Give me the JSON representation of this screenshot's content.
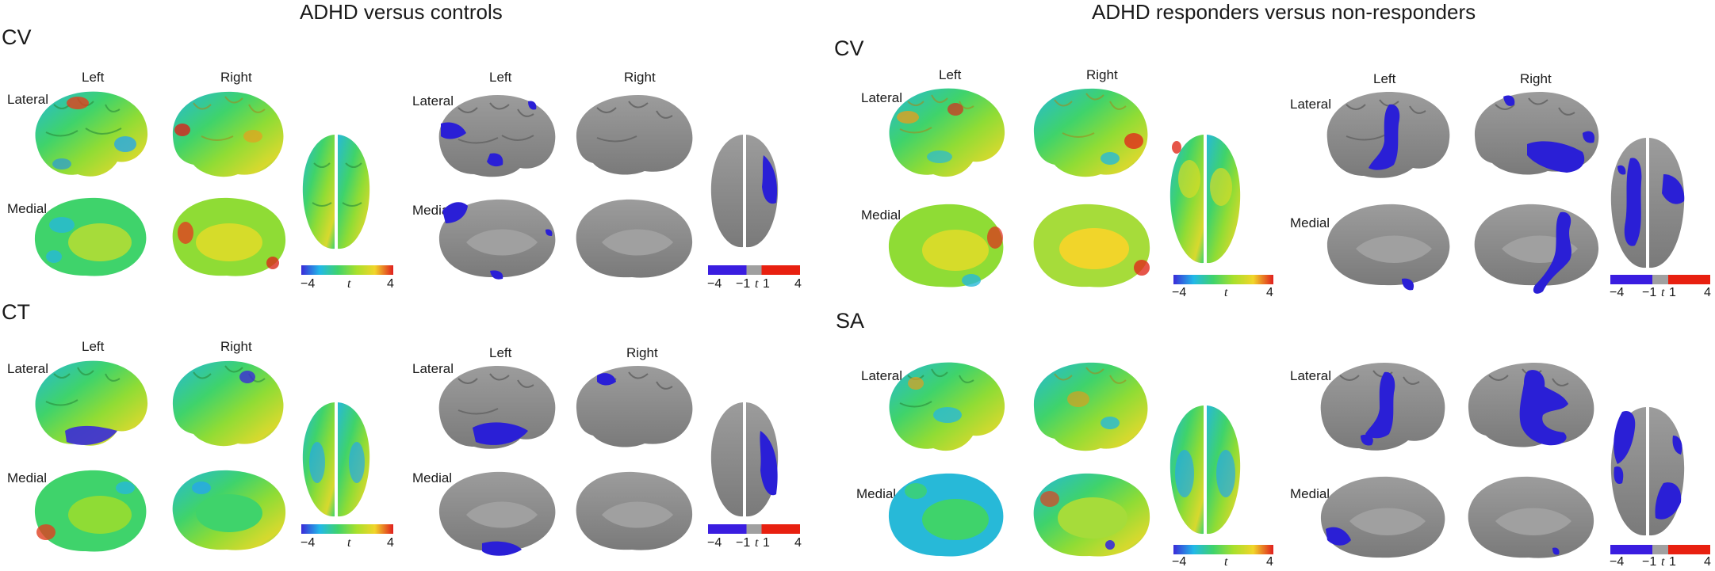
{
  "titles": {
    "left": "ADHD versus controls",
    "right": "ADHD responders versus non-responders"
  },
  "panels": [
    {
      "id": "p1",
      "section": "CV",
      "left": "Left",
      "right": "Right",
      "lateral": "Lateral",
      "medial": "Medial"
    },
    {
      "id": "p2",
      "section": "CT",
      "left": "Left",
      "right": "Right",
      "lateral": "Lateral",
      "medial": "Medial"
    },
    {
      "id": "p3",
      "section": "CV",
      "left": "Left",
      "right": "Right",
      "lateral": "Lateral",
      "medial": "Medial"
    },
    {
      "id": "p4",
      "section": "SA",
      "left": "Left",
      "right": "Right",
      "lateral": "Lateral",
      "medial": "Medial"
    }
  ],
  "tmap_colorbar": {
    "min": "−4",
    "mid": "t",
    "max": "4",
    "colors": [
      "#3a2bd8",
      "#22b8e8",
      "#3fd36b",
      "#a8e02c",
      "#f1d52a",
      "#e01e1e"
    ]
  },
  "sig_colorbar": {
    "min": "−4",
    "neg": "−1",
    "mid": "t",
    "pos": "1",
    "max": "4",
    "colors": {
      "neg": "#3a1de0",
      "ns": "#a0a0a0",
      "pos": "#e82010"
    }
  },
  "colors": {
    "cortex_gray": "#8c8c8c",
    "sig_blue": "#2a1fd6"
  }
}
